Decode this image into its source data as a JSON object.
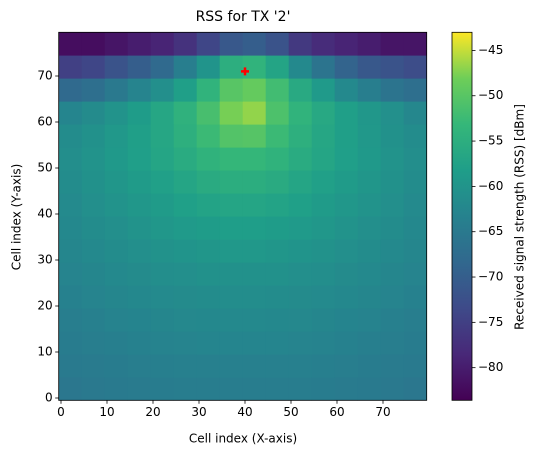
{
  "chart_data": {
    "type": "heatmap",
    "title": "RSS for TX '2'",
    "x_label": "Cell index (X-axis)",
    "y_label": "Cell index (Y-axis)",
    "xlim": [
      -0.5,
      79.5
    ],
    "ylim": [
      -0.5,
      79.5
    ],
    "xticks": [
      0,
      10,
      20,
      30,
      40,
      50,
      60,
      70
    ],
    "yticks": [
      0,
      10,
      20,
      30,
      40,
      50,
      60,
      70
    ],
    "colormap": "viridis",
    "z": [
      [
        -65.4,
        -65.1,
        -64.9,
        -64.6,
        -64.4,
        -64.3,
        -64.2,
        -64.2,
        -64.2,
        -64.2,
        -64.3,
        -64.4,
        -64.6,
        -64.8,
        -65.1,
        -65.4
      ],
      [
        -64.9,
        -64.6,
        -64.4,
        -64.1,
        -63.9,
        -63.7,
        -63.6,
        -63.6,
        -63.6,
        -63.6,
        -63.7,
        -63.9,
        -64.1,
        -64.4,
        -64.6,
        -64.9
      ],
      [
        -64.4,
        -64.1,
        -63.8,
        -63.5,
        -63.2,
        -63.0,
        -62.8,
        -62.8,
        -62.8,
        -62.8,
        -63.0,
        -63.2,
        -63.5,
        -63.8,
        -64.1,
        -64.4
      ],
      [
        -64.0,
        -63.6,
        -63.2,
        -62.9,
        -62.6,
        -62.3,
        -62.2,
        -62.1,
        -62.1,
        -62.2,
        -62.3,
        -62.6,
        -62.9,
        -63.2,
        -63.6,
        -64.0
      ],
      [
        -63.5,
        -63.0,
        -62.6,
        -62.2,
        -61.9,
        -61.6,
        -61.4,
        -61.3,
        -61.3,
        -61.4,
        -61.6,
        -61.9,
        -62.2,
        -62.6,
        -63.0,
        -63.5
      ],
      [
        -63.0,
        -62.5,
        -62.1,
        -61.6,
        -61.2,
        -60.9,
        -60.6,
        -60.5,
        -60.5,
        -60.6,
        -60.9,
        -61.2,
        -61.6,
        -62.1,
        -62.5,
        -63.0
      ],
      [
        -62.6,
        -62.0,
        -61.4,
        -60.9,
        -60.4,
        -60.0,
        -59.6,
        -59.4,
        -59.4,
        -59.6,
        -60.0,
        -60.4,
        -60.9,
        -61.4,
        -62.0,
        -62.6
      ],
      [
        -62.2,
        -61.4,
        -60.9,
        -60.2,
        -59.5,
        -59.0,
        -58.5,
        -58.3,
        -58.3,
        -58.5,
        -59.0,
        -59.5,
        -60.2,
        -60.9,
        -61.4,
        -62.2
      ],
      [
        -61.8,
        -61.0,
        -60.3,
        -59.5,
        -58.7,
        -57.9,
        -57.2,
        -56.8,
        -56.8,
        -57.2,
        -57.9,
        -58.7,
        -59.5,
        -60.3,
        -61.0,
        -61.8
      ],
      [
        -61.4,
        -60.6,
        -59.6,
        -58.7,
        -57.8,
        -56.8,
        -55.8,
        -55.2,
        -55.2,
        -55.8,
        -56.8,
        -57.8,
        -58.7,
        -59.6,
        -60.6,
        -61.4
      ],
      [
        -61.1,
        -60.3,
        -59.2,
        -58.1,
        -56.9,
        -55.6,
        -54.2,
        -53.3,
        -53.3,
        -54.2,
        -55.6,
        -56.9,
        -58.1,
        -59.2,
        -60.3,
        -61.1
      ],
      [
        -61.4,
        -60.5,
        -59.4,
        -58.0,
        -56.6,
        -54.7,
        -52.6,
        -50.5,
        -50.2,
        -52.6,
        -54.7,
        -56.6,
        -58.0,
        -59.4,
        -60.5,
        -61.4
      ],
      [
        -62.8,
        -61.6,
        -60.2,
        -58.5,
        -56.6,
        -54.4,
        -51.5,
        -47.8,
        -46.8,
        -51.0,
        -54.0,
        -56.2,
        -58.0,
        -59.5,
        -60.8,
        -62.4
      ],
      [
        -68,
        -67,
        -65,
        -63,
        -61,
        -58,
        -54,
        -50,
        -49,
        -52,
        -56,
        -59,
        -62,
        -64,
        -66,
        -67
      ],
      [
        -75,
        -74,
        -72,
        -70,
        -68,
        -64,
        -60,
        -55,
        -54,
        -57,
        -62,
        -66,
        -69,
        -71,
        -72,
        -73
      ],
      [
        -82,
        -82,
        -81,
        -80,
        -79,
        -77,
        -74,
        -71,
        -70,
        -72,
        -76,
        -78,
        -79,
        -80,
        -81,
        -81
      ]
    ],
    "marker": {
      "x": 40,
      "y": 71,
      "color": "#ff0000"
    },
    "colorbar": {
      "label": "Received signal strength (RSS) [dBm]",
      "lim": [
        -83.6,
        -43
      ],
      "ticks": [
        {
          "value": -80,
          "label": "−80"
        },
        {
          "value": -75,
          "label": "−75"
        },
        {
          "value": -70,
          "label": "−70"
        },
        {
          "value": -65,
          "label": "−65"
        },
        {
          "value": -60,
          "label": "−60"
        },
        {
          "value": -55,
          "label": "−55"
        },
        {
          "value": -50,
          "label": "−50"
        },
        {
          "value": -45,
          "label": "−45"
        }
      ]
    }
  }
}
